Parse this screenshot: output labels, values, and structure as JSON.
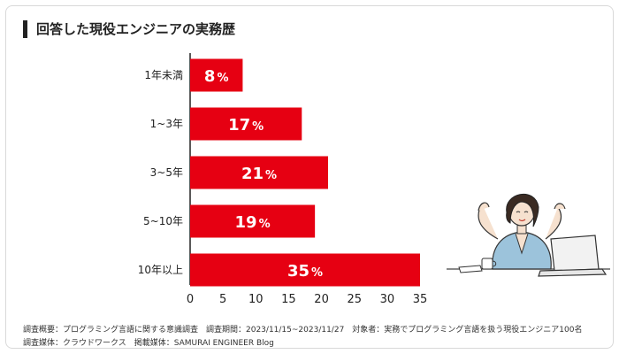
{
  "title": "回答した現役エンジニアの実務歴",
  "chart_data": {
    "type": "bar",
    "orientation": "horizontal",
    "title": "回答した現役エンジニアの実務歴",
    "categories": [
      "1年未満",
      "1~3年",
      "3~5年",
      "5~10年",
      "10年以上"
    ],
    "values": [
      8,
      17,
      21,
      19,
      35
    ],
    "value_suffix": "%",
    "xlim": [
      0,
      35
    ],
    "xticks": [
      "0",
      "5",
      "10",
      "15",
      "20",
      "25",
      "30",
      "35"
    ],
    "grid": false,
    "bar_color": "#e60012"
  },
  "notes": {
    "line1": "調査概要：プログラミング言語に関する意識調査　調査期間：2023/11/15~2023/11/27　対象者：実務でプログラミング言語を扱う現役エンジニア100名",
    "line2": "調査媒体：クラウドワークス　掲載媒体：SAMURAI ENGINEER Blog"
  }
}
